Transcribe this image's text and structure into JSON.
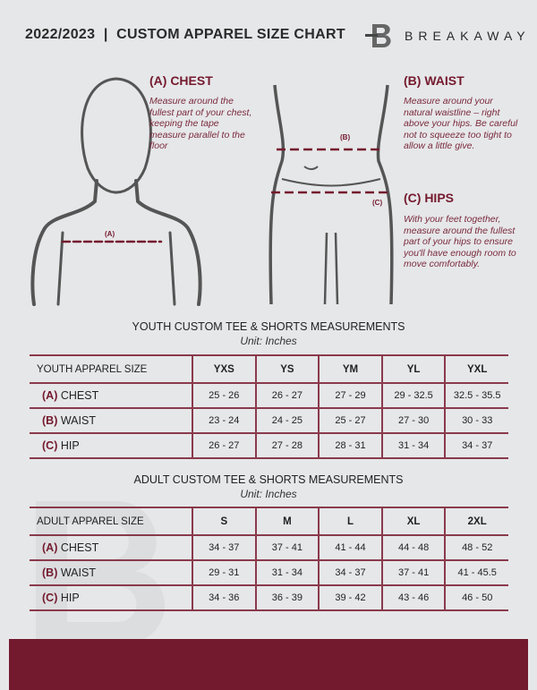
{
  "header": {
    "title": "2022/2023  |  CUSTOM APPAREL SIZE CHART",
    "brand": "BREAKAWAY",
    "logo_letter": "B"
  },
  "colors": {
    "accent": "#741a2e",
    "background": "#e6e7e9"
  },
  "chest": {
    "heading": "(A) CHEST",
    "desc": "Measure around the fullest part of your chest, keeping the tape measure parallel to the floor",
    "marker": "(A)"
  },
  "waist": {
    "heading": "(B) WAIST",
    "desc": "Measure around your natural waistline – right above your hips. Be careful not to squeeze too tight to allow a little give.",
    "marker": "(B)"
  },
  "hips": {
    "heading": "(C) HIPS",
    "desc": "With your feet together, measure around the fullest part of your hips to ensure you'll have enough room to move comfortably.",
    "marker": "(C)"
  },
  "youth": {
    "title": "YOUTH CUSTOM TEE & SHORTS MEASUREMENTS",
    "unit": "Unit: Inches",
    "size_label": "YOUTH APPAREL SIZE",
    "sizes": [
      "YXS",
      "YS",
      "YM",
      "YL",
      "YXL"
    ],
    "rows": [
      {
        "tag": "(A)",
        "name": "CHEST",
        "values": [
          "25 - 26",
          "26 - 27",
          "27 - 29",
          "29 - 32.5",
          "32.5 - 35.5"
        ]
      },
      {
        "tag": "(B)",
        "name": "WAIST",
        "values": [
          "23 - 24",
          "24 - 25",
          "25 - 27",
          "27 - 30",
          "30 - 33"
        ]
      },
      {
        "tag": "(C)",
        "name": "HIP",
        "values": [
          "26 - 27",
          "27 - 28",
          "28 - 31",
          "31 - 34",
          "34 - 37"
        ]
      }
    ]
  },
  "adult": {
    "title": "ADULT CUSTOM TEE & SHORTS MEASUREMENTS",
    "unit": "Unit: Inches",
    "size_label": "ADULT APPAREL SIZE",
    "sizes": [
      "S",
      "M",
      "L",
      "XL",
      "2XL"
    ],
    "rows": [
      {
        "tag": "(A)",
        "name": "CHEST",
        "values": [
          "34 - 37",
          "37 - 41",
          "41 - 44",
          "44 - 48",
          "48 - 52"
        ]
      },
      {
        "tag": "(B)",
        "name": "WAIST",
        "values": [
          "29 - 31",
          "31 - 34",
          "34 - 37",
          "37 - 41",
          "41 - 45.5"
        ]
      },
      {
        "tag": "(C)",
        "name": "HIP",
        "values": [
          "34 - 36",
          "36 - 39",
          "39 - 42",
          "43 - 46",
          "46 - 50"
        ]
      }
    ]
  }
}
